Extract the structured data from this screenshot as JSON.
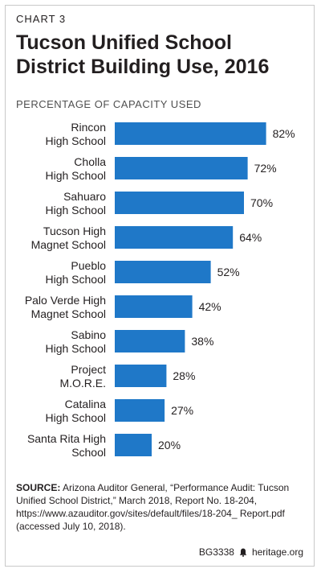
{
  "header": {
    "chart_label": "CHART 3",
    "title": "Tucson Unified School District Building Use, 2016",
    "subtitle": "PERCENTAGE OF CAPACITY USED"
  },
  "chart_data": {
    "type": "bar",
    "orientation": "horizontal",
    "title": "Tucson Unified School District Building Use, 2016",
    "ylabel": "",
    "xlabel": "PERCENTAGE OF CAPACITY USED",
    "categories": [
      [
        "Rincon",
        "High School"
      ],
      [
        "Cholla",
        "High School"
      ],
      [
        "Sahuaro",
        "High School"
      ],
      [
        "Tucson High",
        "Magnet School"
      ],
      [
        "Pueblo",
        "High School"
      ],
      [
        "Palo Verde High",
        "Magnet School"
      ],
      [
        "Sabino",
        "High School"
      ],
      [
        "Project",
        "M.O.R.E."
      ],
      [
        "Catalina",
        "High School"
      ],
      [
        "Santa Rita High",
        "School"
      ]
    ],
    "values": [
      82,
      72,
      70,
      64,
      52,
      42,
      38,
      28,
      27,
      20
    ],
    "value_labels": [
      "82%",
      "72%",
      "70%",
      "64%",
      "52%",
      "42%",
      "38%",
      "28%",
      "27%",
      "20%"
    ],
    "xlim": [
      0,
      100
    ],
    "bar_color": "#1f78c8"
  },
  "source": {
    "label": "SOURCE:",
    "text": "Arizona Auditor General, “Performance Audit: Tucson Unified School District,” March 2018, Report No. 18-204, https://www.azauditor.gov/sites/default/files/18-204_ Report.pdf (accessed July 10, 2018)."
  },
  "footer": {
    "code": "BG3338",
    "brand": "heritage.org"
  }
}
